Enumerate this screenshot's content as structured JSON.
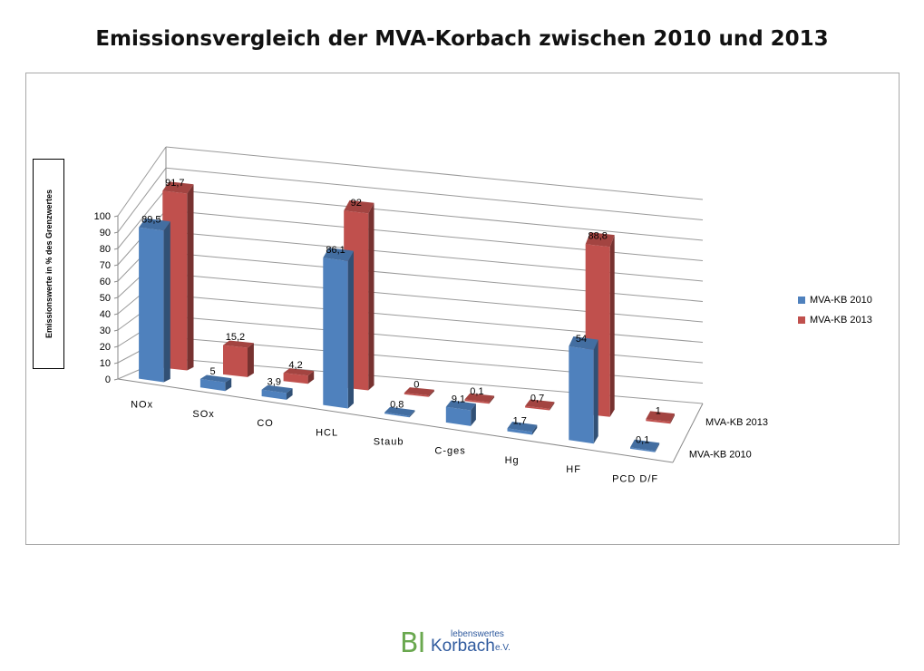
{
  "page": {
    "title": "Emissionsvergleich der MVA-Korbach zwischen 2010 und 2013"
  },
  "legend": {
    "items": [
      {
        "label": "MVA-KB 2010",
        "color": "#4f81bd"
      },
      {
        "label": "MVA-KB 2013",
        "color": "#c0504d"
      }
    ]
  },
  "logo": {
    "bi": "BI",
    "small": "lebenswertes",
    "big": "Korbach",
    "ev": "e.V."
  },
  "chart_data": {
    "type": "bar",
    "title": "Emissionsvergleich der MVA-Korbach zwischen 2010 und 2013",
    "ylabel": "Emissionswerte in % des Grenzwertes",
    "xlabel": "",
    "ylim": [
      0,
      100
    ],
    "yticks": [
      "0",
      "10",
      "20",
      "30",
      "40",
      "50",
      "60",
      "70",
      "80",
      "90",
      "100"
    ],
    "categories": [
      "NOx",
      "SOx",
      "CO",
      "HCL",
      "Staub",
      "C-ges",
      "Hg",
      "HF",
      "PCD D/F"
    ],
    "depth_labels": [
      "MVA-KB 2013",
      "MVA-KB 2010"
    ],
    "series": [
      {
        "name": "MVA-KB 2010",
        "color": "#4f81bd",
        "values": [
          89.5,
          5,
          3.9,
          86.1,
          0.8,
          9.1,
          1.7,
          54,
          0.1
        ],
        "labels": [
          "89,5",
          "5",
          "3,9",
          "86,1",
          "0,8",
          "9,1",
          "1,7",
          "54",
          "0,1"
        ]
      },
      {
        "name": "MVA-KB 2013",
        "color": "#c0504d",
        "values": [
          91.7,
          15.2,
          4.2,
          92,
          0,
          0.1,
          0.7,
          88.8,
          1
        ],
        "labels": [
          "91,7",
          "15,2",
          "4,2",
          "92",
          "0",
          "0,1",
          "0,7",
          "88,8",
          "1"
        ]
      }
    ],
    "grid": true,
    "legend_position": "right",
    "style": "3d-column"
  }
}
